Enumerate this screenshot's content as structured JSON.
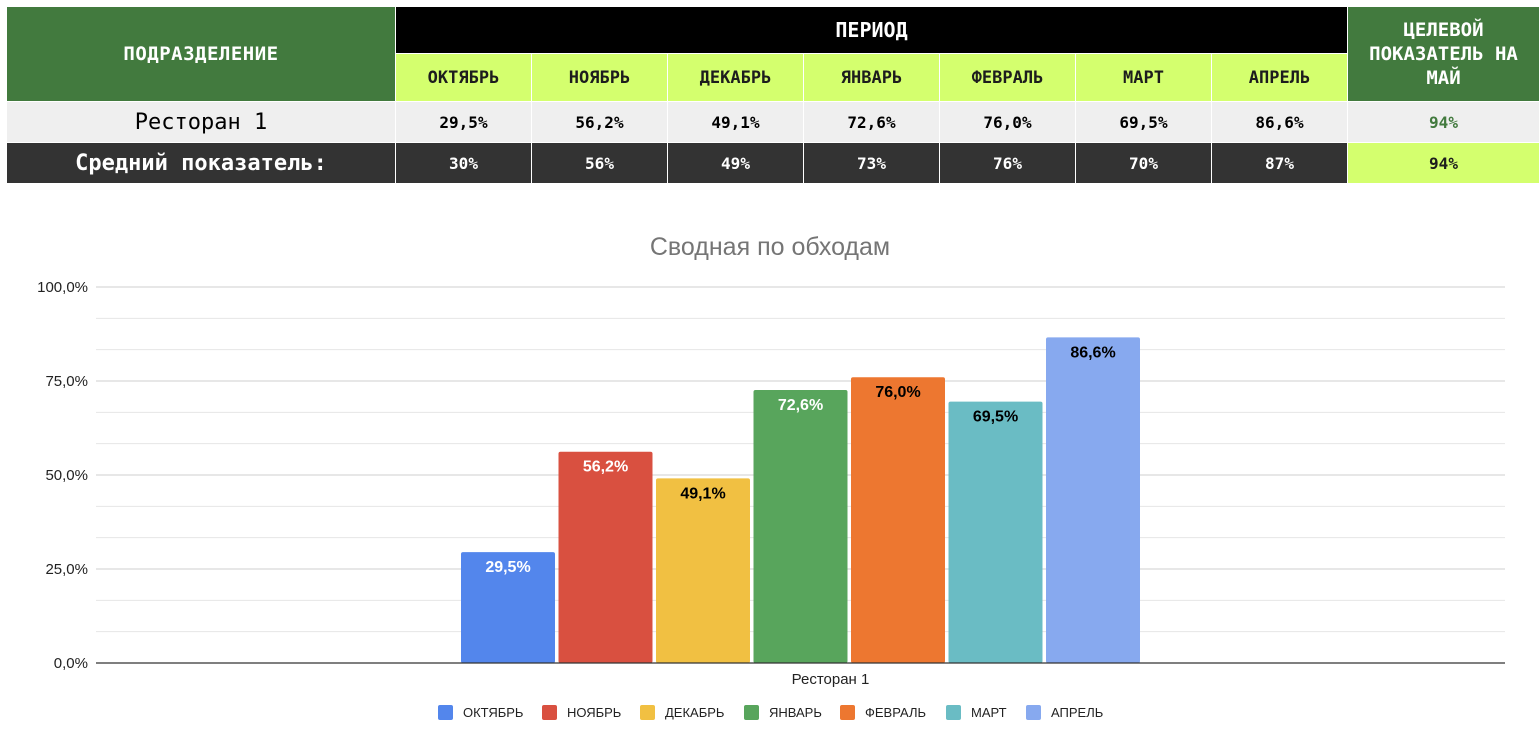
{
  "table": {
    "dept_header": "ПОДРАЗДЕЛЕНИЕ",
    "period_header": "ПЕРИОД",
    "target_header": "ЦЕЛЕВОЙ ПОКАЗАТЕЛЬ НА МАЙ",
    "months": [
      "ОКТЯБРЬ",
      "НОЯБРЬ",
      "ДЕКАБРЬ",
      "ЯНВАРЬ",
      "ФЕВРАЛЬ",
      "МАРТ",
      "АПРЕЛЬ"
    ],
    "rows": [
      {
        "name": "Ресторан 1",
        "values": [
          "29,5%",
          "56,2%",
          "49,1%",
          "72,6%",
          "76,0%",
          "69,5%",
          "86,6%"
        ],
        "target": "94%"
      },
      {
        "name": "Средний показатель:",
        "values": [
          "30%",
          "56%",
          "49%",
          "73%",
          "76%",
          "70%",
          "87%"
        ],
        "target": "94%"
      }
    ],
    "colors": {
      "header_green": "#427a3e",
      "month_lime": "#d4ff6e",
      "period_black": "#000000",
      "row1_bg": "#efefef",
      "row2_bg": "#333333"
    }
  },
  "chart_data": {
    "type": "bar",
    "title": "Сводная по обходам",
    "categories": [
      "Ресторан 1"
    ],
    "series": [
      {
        "name": "ОКТЯБРЬ",
        "values": [
          29.5
        ],
        "label": "29,5%",
        "color": "#5386ec",
        "label_color": "#ffffff"
      },
      {
        "name": "НОЯБРЬ",
        "values": [
          56.2
        ],
        "label": "56,2%",
        "color": "#d95040",
        "label_color": "#ffffff"
      },
      {
        "name": "ДЕКАБРЬ",
        "values": [
          49.1
        ],
        "label": "49,1%",
        "color": "#f1c042",
        "label_color": "#000000"
      },
      {
        "name": "ЯНВАРЬ",
        "values": [
          72.6
        ],
        "label": "72,6%",
        "color": "#58a55c",
        "label_color": "#ffffff"
      },
      {
        "name": "ФЕВРАЛЬ",
        "values": [
          76.0
        ],
        "label": "76,0%",
        "color": "#ed7730",
        "label_color": "#000000"
      },
      {
        "name": "МАРТ",
        "values": [
          69.5
        ],
        "label": "69,5%",
        "color": "#6abcc4",
        "label_color": "#000000"
      },
      {
        "name": "АПРЕЛЬ",
        "values": [
          86.6
        ],
        "label": "86,6%",
        "color": "#87a9ef",
        "label_color": "#000000"
      }
    ],
    "ylim": [
      0,
      100
    ],
    "yticks": [
      0,
      25,
      50,
      75,
      100
    ],
    "ytick_labels": [
      "0,0%",
      "25,0%",
      "50,0%",
      "75,0%",
      "100,0%"
    ],
    "grid": true,
    "legend_position": "bottom"
  }
}
